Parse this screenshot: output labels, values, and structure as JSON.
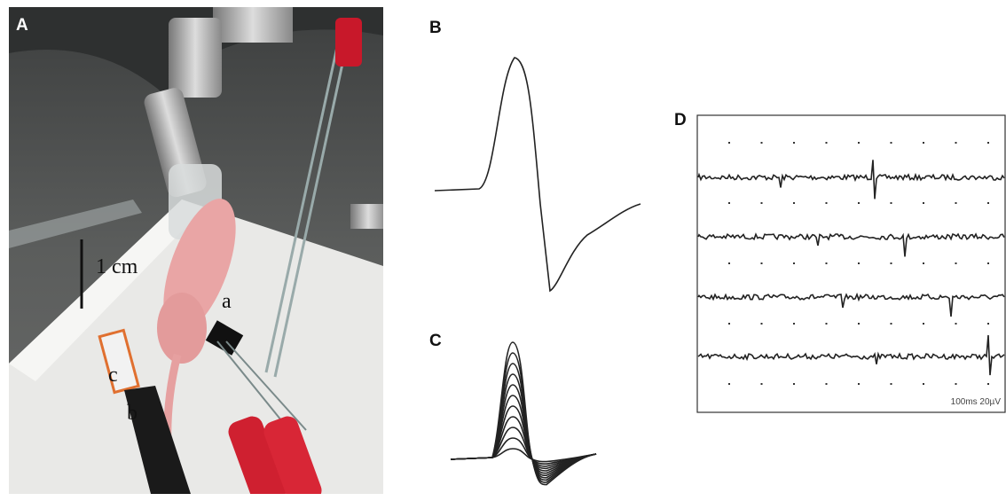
{
  "panels": [
    {
      "label": "A",
      "scale_bar": "1 cm",
      "electrodes": [
        "a",
        "b",
        "c"
      ]
    },
    {
      "label": "B"
    },
    {
      "label": "C"
    },
    {
      "label": "D",
      "scale": "100ms 20µV"
    }
  ]
}
